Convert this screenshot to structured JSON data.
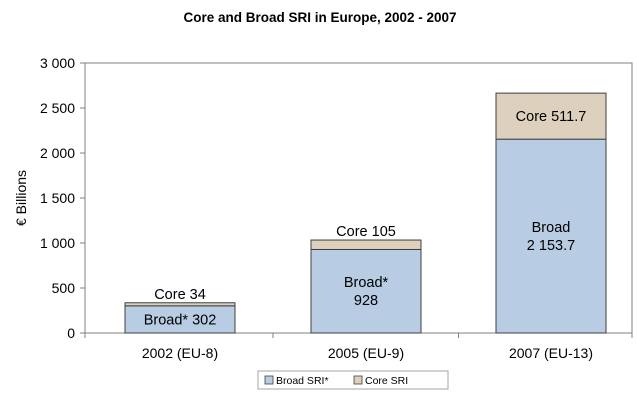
{
  "chart_data": {
    "type": "bar",
    "stacked": true,
    "title": "Core and Broad SRI in Europe, 2002 - 2007",
    "ylabel": "€ Billions",
    "xlabel": "",
    "ylim": [
      0,
      3000
    ],
    "yticks": [
      0,
      500,
      1000,
      1500,
      2000,
      2500,
      3000
    ],
    "ytick_labels": [
      "0",
      "500",
      "1 000",
      "1 500",
      "2 000",
      "2 500",
      "3 000"
    ],
    "categories": [
      "2002 (EU-8)",
      "2005 (EU-9)",
      "2007 (EU-13)"
    ],
    "grid": false,
    "legend_position": "bottom",
    "series": [
      {
        "name": "Broad SRI*",
        "values": [
          302,
          928,
          2153.7
        ],
        "labels": [
          [
            "Broad* 302"
          ],
          [
            "Broad*",
            "928"
          ],
          [
            "Broad",
            "2 153.7"
          ]
        ],
        "color": "#b8cce4"
      },
      {
        "name": "Core SRI",
        "values": [
          34,
          105,
          511.7
        ],
        "labels": [
          [
            "Core 34"
          ],
          [
            "Core 105"
          ],
          [
            "Core 511.7"
          ]
        ],
        "color": "#ddd0bd"
      }
    ],
    "axis_color": "#808080",
    "bar_edge_color": "#3f3f3f"
  }
}
